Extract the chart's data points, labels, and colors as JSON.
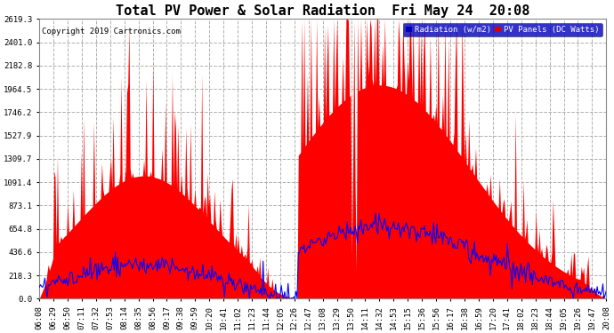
{
  "title": "Total PV Power & Solar Radiation  Fri May 24  20:08",
  "copyright": "Copyright 2019 Cartronics.com",
  "legend_labels": [
    "Radiation (w/m2)",
    "PV Panels (DC Watts)"
  ],
  "legend_colors": [
    "#0000ff",
    "#ff0000"
  ],
  "legend_bg_blue": "#0000cc",
  "legend_bg_red": "#cc0000",
  "y_max": 2619.3,
  "y_ticks": [
    0.0,
    218.3,
    436.6,
    654.8,
    873.1,
    1091.4,
    1309.7,
    1527.9,
    1746.2,
    1964.5,
    2182.8,
    2401.0,
    2619.3
  ],
  "background_color": "#ffffff",
  "plot_bg": "#ffffff",
  "grid_color": "#b0b0b0",
  "fill_color": "#ff0000",
  "line_color": "#0000ff",
  "title_fontsize": 11,
  "tick_fontsize": 6.5,
  "x_tick_labels": [
    "06:08",
    "06:29",
    "06:50",
    "07:11",
    "07:32",
    "07:53",
    "08:14",
    "08:35",
    "08:56",
    "09:17",
    "09:38",
    "09:59",
    "10:20",
    "10:41",
    "11:02",
    "11:23",
    "11:44",
    "12:05",
    "12:26",
    "12:47",
    "13:08",
    "13:29",
    "13:50",
    "14:11",
    "14:32",
    "14:53",
    "15:15",
    "15:36",
    "15:56",
    "16:17",
    "16:38",
    "16:59",
    "17:20",
    "17:41",
    "18:02",
    "18:23",
    "18:44",
    "19:05",
    "19:26",
    "19:47",
    "20:08"
  ]
}
